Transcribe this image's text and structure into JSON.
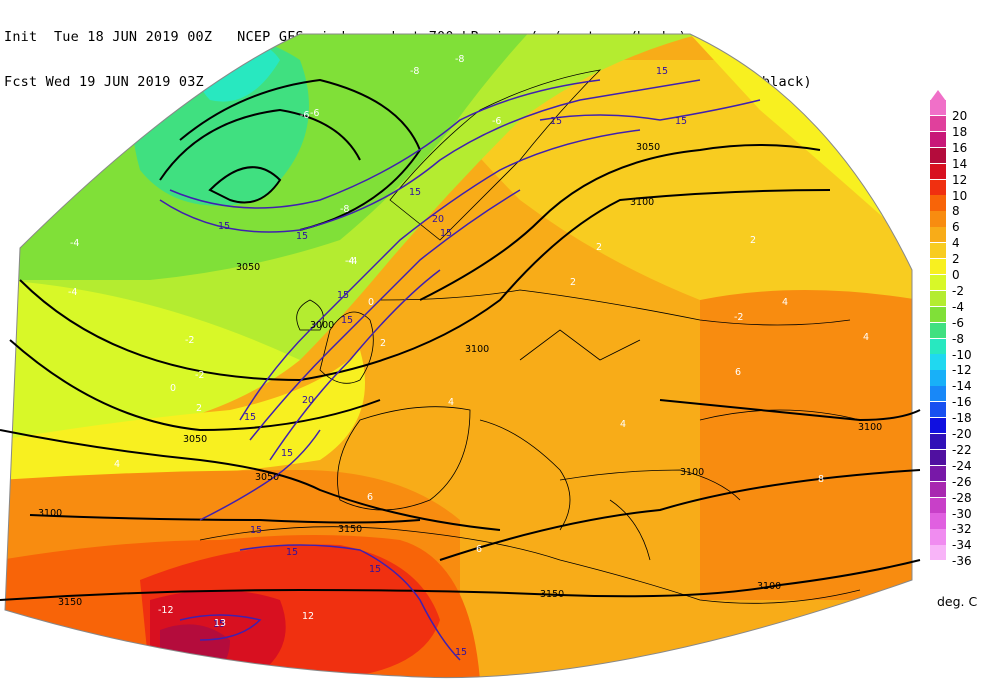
{
  "header": {
    "line1": "Init  Tue 18 JUN 2019 00Z   NCEP GFS wind speed at 700 hPa in m/s (contours/barbs)",
    "line2": "Fcst Wed 19 JUN 2019 03Z   temperature (shaded/dotted) and geopotential height at 700 hPa (black)"
  },
  "colorbar": {
    "units": "deg. C",
    "entries": [
      {
        "label": "20",
        "color": "#f070c8"
      },
      {
        "label": "18",
        "color": "#e0409c"
      },
      {
        "label": "16",
        "color": "#c81878"
      },
      {
        "label": "14",
        "color": "#b40c3c"
      },
      {
        "label": "12",
        "color": "#d81020"
      },
      {
        "label": "10",
        "color": "#f03010"
      },
      {
        "label": "8",
        "color": "#f86408"
      },
      {
        "label": "6",
        "color": "#f88c10"
      },
      {
        "label": "4",
        "color": "#f8ac18"
      },
      {
        "label": "2",
        "color": "#f8cc20"
      },
      {
        "label": "0",
        "color": "#f8f020"
      },
      {
        "label": "-2",
        "color": "#d8f828"
      },
      {
        "label": "-4",
        "color": "#b4ec30"
      },
      {
        "label": "-6",
        "color": "#80e038"
      },
      {
        "label": "-8",
        "color": "#40e080"
      },
      {
        "label": "-10",
        "color": "#28e8c0"
      },
      {
        "label": "-12",
        "color": "#20d8f0"
      },
      {
        "label": "-14",
        "color": "#18b0f8"
      },
      {
        "label": "-16",
        "color": "#1888f8"
      },
      {
        "label": "-18",
        "color": "#1850f0"
      },
      {
        "label": "-20",
        "color": "#1010e0"
      },
      {
        "label": "-22",
        "color": "#3010b8"
      },
      {
        "label": "-24",
        "color": "#5010a0"
      },
      {
        "label": "-26",
        "color": "#7818a8"
      },
      {
        "label": "-28",
        "color": "#a828b0"
      },
      {
        "label": "-30",
        "color": "#c840c8"
      },
      {
        "label": "-32",
        "color": "#e060e0"
      },
      {
        "label": "-34",
        "color": "#f08cf0"
      },
      {
        "label": "-36",
        "color": "#f8b4f8"
      }
    ]
  },
  "map_labels": {
    "heights": [
      "3100",
      "3100",
      "3100",
      "3050",
      "3050",
      "3100",
      "3150",
      "3150",
      "3100",
      "3150",
      "3100",
      "3000",
      "3050",
      "3050"
    ],
    "winds": [
      "15",
      "15",
      "15",
      "15",
      "15",
      "15",
      "20",
      "15",
      "15",
      "15",
      "15",
      "15",
      "15",
      "15",
      "15",
      "20",
      "15",
      "15"
    ],
    "temps": [
      "-8",
      "-8",
      "-6",
      "-6",
      "-4",
      "-4",
      "-4",
      "-2",
      "-2",
      "-2",
      "0",
      "2",
      "2",
      "4",
      "4",
      "4",
      "6",
      "6",
      "8",
      "12",
      "13",
      "-12",
      "-6",
      "-8",
      "2",
      "2",
      "4",
      "6",
      "4",
      "2",
      "0",
      "-4"
    ]
  }
}
